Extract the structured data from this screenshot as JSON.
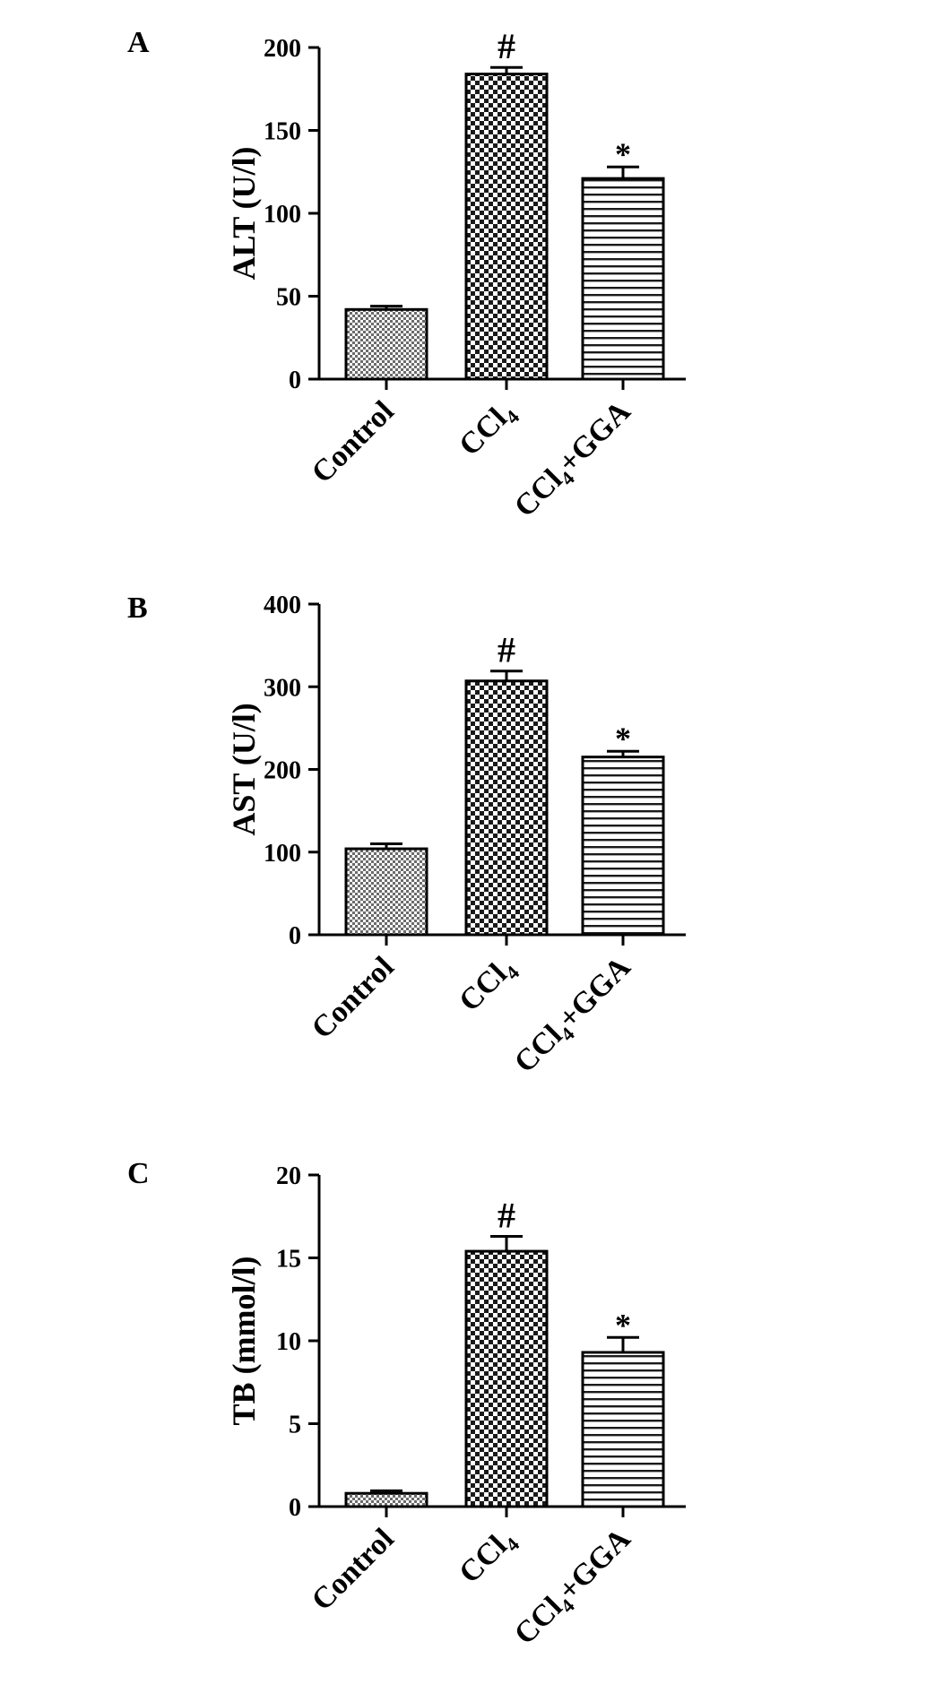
{
  "chart_data": [
    {
      "type": "bar",
      "panel": "A",
      "ylabel": "ALT (U/l)",
      "ylim": [
        0,
        200
      ],
      "yticks": [
        "0",
        "50",
        "100",
        "150",
        "200"
      ],
      "categories": [
        {
          "main": "Control",
          "sub": "",
          "tail": ""
        },
        {
          "main": "CCl",
          "sub": "4",
          "tail": ""
        },
        {
          "main": "CCl",
          "sub": "4",
          "tail": "+GGA"
        }
      ],
      "values": [
        42,
        184,
        121
      ],
      "errors": [
        2,
        4,
        7
      ],
      "annotations": [
        "",
        "#",
        "*"
      ],
      "patterns": [
        "fine-check",
        "coarse-check",
        "hlines"
      ]
    },
    {
      "type": "bar",
      "panel": "B",
      "ylabel": "AST (U/l)",
      "ylim": [
        0,
        400
      ],
      "yticks": [
        "0",
        "100",
        "200",
        "300",
        "400"
      ],
      "categories": [
        {
          "main": "Control",
          "sub": "",
          "tail": ""
        },
        {
          "main": "CCl",
          "sub": "4",
          "tail": ""
        },
        {
          "main": "CCl",
          "sub": "4",
          "tail": "+GGA"
        }
      ],
      "values": [
        104,
        307,
        215
      ],
      "errors": [
        6,
        12,
        7
      ],
      "annotations": [
        "",
        "#",
        "*"
      ],
      "patterns": [
        "fine-check",
        "coarse-check",
        "hlines"
      ]
    },
    {
      "type": "bar",
      "panel": "C",
      "ylabel": "TB (mmol/l)",
      "ylim": [
        0,
        20
      ],
      "yticks": [
        "0",
        "5",
        "10",
        "15",
        "20"
      ],
      "categories": [
        {
          "main": "Control",
          "sub": "",
          "tail": ""
        },
        {
          "main": "CCl",
          "sub": "4",
          "tail": ""
        },
        {
          "main": "CCl",
          "sub": "4",
          "tail": "+GGA"
        }
      ],
      "values": [
        0.8,
        15.4,
        9.3
      ],
      "errors": [
        0.15,
        0.9,
        0.9
      ],
      "annotations": [
        "",
        "#",
        "*"
      ],
      "patterns": [
        "fine-check",
        "coarse-check",
        "hlines"
      ]
    }
  ]
}
